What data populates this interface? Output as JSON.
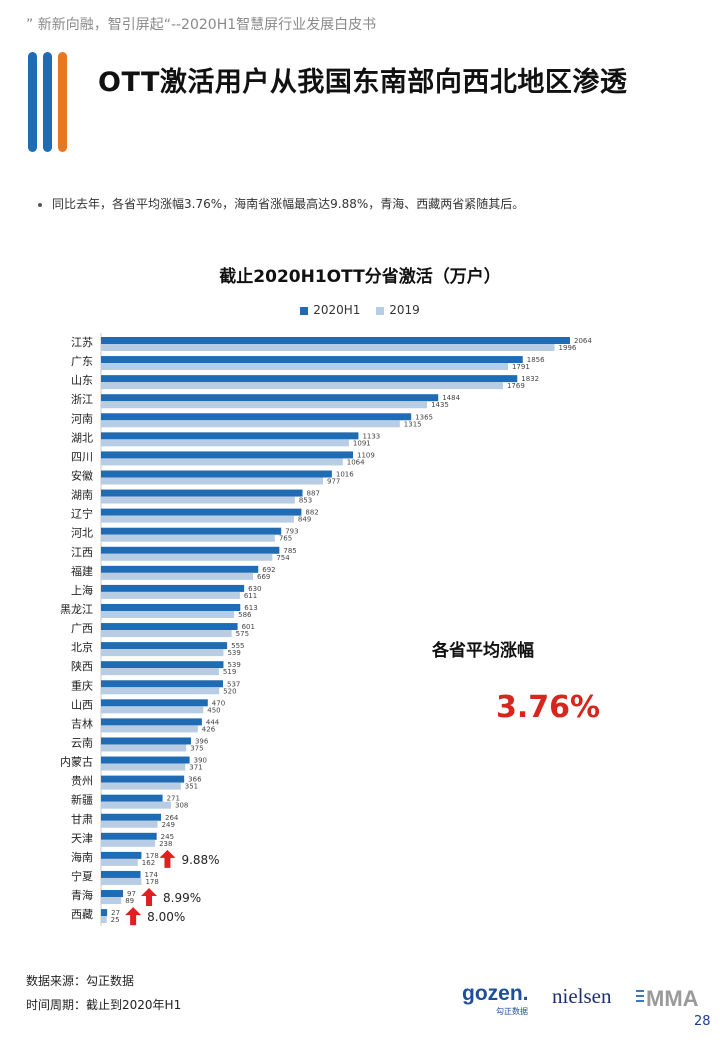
{
  "header_note": "” 新新向融，智引屏起“--2020H1智慧屏行业发展白皮书",
  "page_title": "OTT激活用户从我国东南部向西北地区渗透",
  "bullet": "同比去年，各省平均涨幅3.76%，海南省涨幅最高达9.88%，青海、西藏两省紧随其后。",
  "avg_label": "各省平均涨幅",
  "avg_value": "3.76%",
  "footer": {
    "source": "数据来源：勾正数据",
    "period": "时间周期：截止到2020年H1"
  },
  "page_number": "28",
  "logos": {
    "gozen": "gozen.",
    "gozen_sub": "勾正数据",
    "nielsen": "nielsen",
    "mma": "MMA"
  },
  "colors": {
    "series_2020": "#1f6cb4",
    "series_2019": "#b8cce4",
    "accent_red": "#d7261e",
    "arrow": "#e02020"
  },
  "chart_data": {
    "type": "bar",
    "orientation": "horizontal",
    "title": "截止2020H1OTT分省激活（万户）",
    "categories": [
      "江苏",
      "广东",
      "山东",
      "浙江",
      "河南",
      "湖北",
      "四川",
      "安徽",
      "湖南",
      "辽宁",
      "河北",
      "江西",
      "福建",
      "上海",
      "黑龙江",
      "广西",
      "北京",
      "陕西",
      "重庆",
      "山西",
      "吉林",
      "云南",
      "内蒙古",
      "贵州",
      "新疆",
      "甘肃",
      "天津",
      "海南",
      "宁夏",
      "青海",
      "西藏"
    ],
    "series": [
      {
        "name": "2020H1",
        "values": [
          2064,
          1856,
          1832,
          1484,
          1365,
          1133,
          1109,
          1016,
          887,
          882,
          793,
          785,
          692,
          630,
          613,
          601,
          555,
          539,
          537,
          470,
          444,
          396,
          390,
          366,
          271,
          264,
          245,
          178,
          174,
          97,
          27
        ]
      },
      {
        "name": "2019",
        "values": [
          1996,
          1791,
          1769,
          1435,
          1315,
          1091,
          1064,
          977,
          853,
          849,
          765,
          754,
          669,
          611,
          586,
          575,
          539,
          519,
          520,
          450,
          426,
          375,
          371,
          351,
          308,
          249,
          238,
          162,
          178,
          89,
          25
        ]
      }
    ],
    "xlim": [
      0,
      2200
    ],
    "legend_position": "top-center",
    "annotations": [
      {
        "category": "海南",
        "text": "9.88%"
      },
      {
        "category": "青海",
        "text": "8.99%"
      },
      {
        "category": "西藏",
        "text": "8.00%"
      }
    ]
  }
}
